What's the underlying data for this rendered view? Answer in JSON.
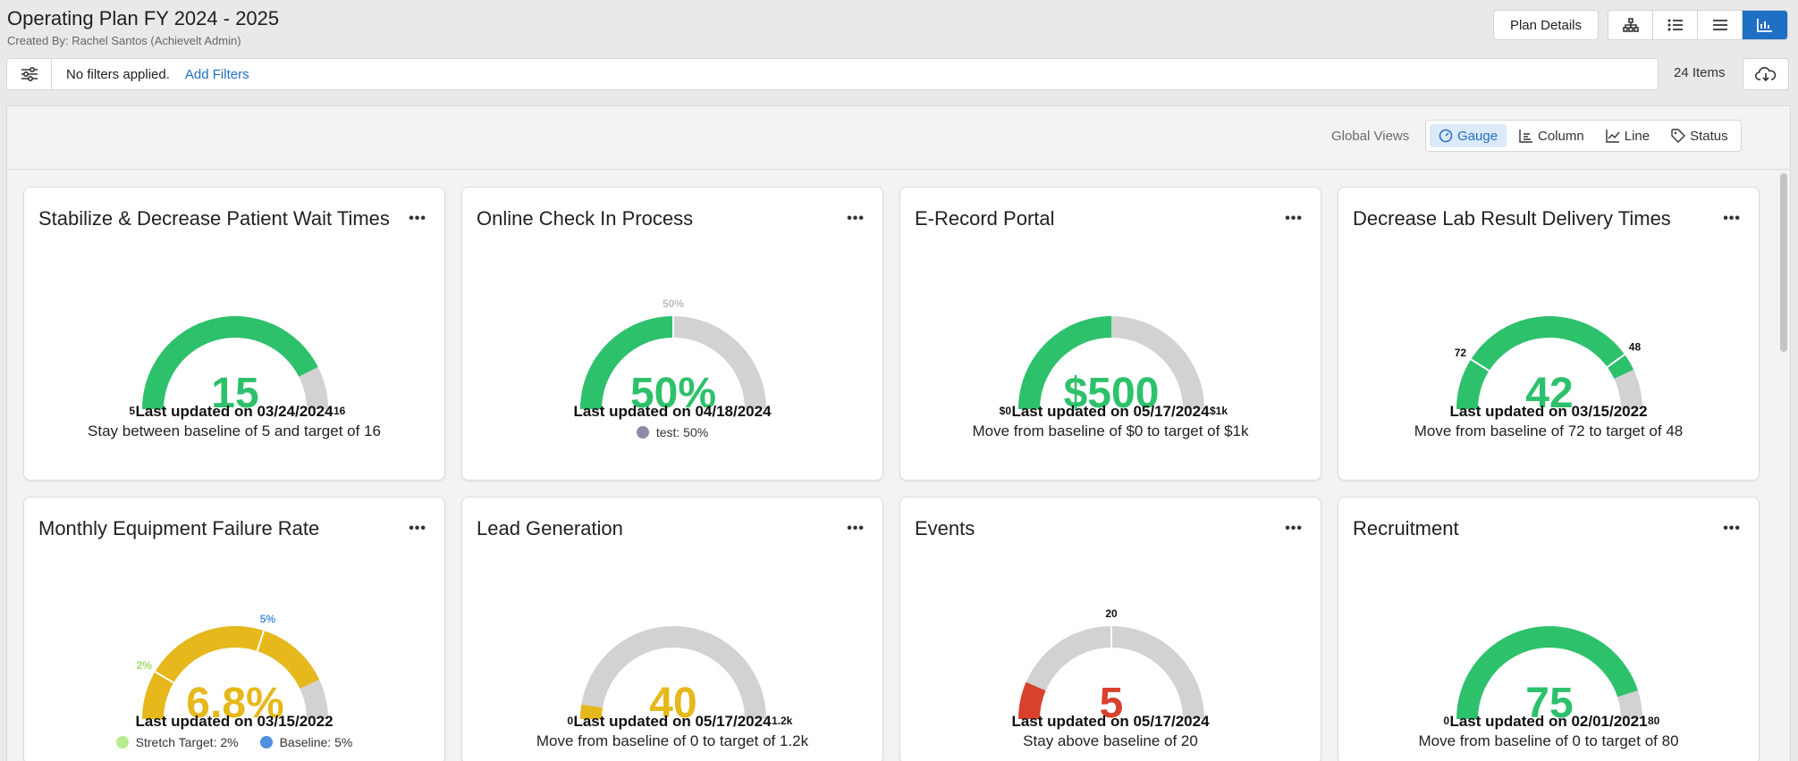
{
  "header": {
    "title": "Operating Plan FY 2024 - 2025",
    "created_by": "Created By: Rachel Santos (Achievelt Admin)",
    "plan_details_label": "Plan Details"
  },
  "filters": {
    "status_text": "No filters applied.",
    "add_label": "Add Filters",
    "items_count": "24 Items"
  },
  "global_views": {
    "label": "Global Views",
    "options": [
      "Gauge",
      "Column",
      "Line",
      "Status"
    ],
    "active": "Gauge"
  },
  "colors": {
    "green": "#2dc16c",
    "gray": "#d2d2d2",
    "yellow": "#e6b81b",
    "red": "#d9412f",
    "blue": "#1f6fc4",
    "stretch_green": "#b7ec8f",
    "baseline_blue": "#4f8fdc",
    "test_purple": "#8c8ba6"
  },
  "cards": [
    {
      "title": "Stabilize & Decrease Patient Wait Times",
      "value": "15",
      "value_color": "#2dc16c",
      "fill_fraction": 0.85,
      "fill_color": "#2dc16c",
      "left_label": "5",
      "right_label": "16",
      "updated": "Last updated on 03/24/2024",
      "description": "Stay between baseline of 5 and target of 16"
    },
    {
      "title": "Online Check In Process",
      "value": "50%",
      "value_color": "#2dc16c",
      "fill_fraction": 0.5,
      "fill_color": "#2dc16c",
      "marker_fraction": 0.5,
      "marker_label": "50%",
      "marker_label_color": "#bcbcbc",
      "updated": "Last updated on 04/18/2024",
      "legend": [
        {
          "label": "test: 50%",
          "color": "#8c8ba6"
        }
      ]
    },
    {
      "title": "E-Record Portal",
      "value": "$500",
      "value_color": "#2dc16c",
      "fill_fraction": 0.5,
      "fill_color": "#2dc16c",
      "left_label": "$0",
      "right_label": "$1k",
      "updated": "Last updated on 05/17/2024",
      "description": "Move from baseline of $0 to target of $1k"
    },
    {
      "title": "Decrease Lab Result Delivery Times",
      "value": "42",
      "value_color": "#2dc16c",
      "fill_fraction": 0.86,
      "fill_color": "#2dc16c",
      "marker_fraction": 0.8,
      "marker_label": "48",
      "marker_label_color": "#111111",
      "marker2_fraction": 0.18,
      "marker2_label": "72",
      "marker2_label_color": "#111111",
      "updated": "Last updated on 03/15/2022",
      "description": "Move from baseline of 72 to target of 48"
    },
    {
      "title": "Monthly Equipment Failure Rate",
      "value": "6.8%",
      "value_color": "#e6b81b",
      "fill_fraction": 0.86,
      "fill_color": "#e6b81b",
      "marker_fraction": 0.6,
      "marker_label": "5%",
      "marker_label_color": "#4f8fdc",
      "marker2_fraction": 0.17,
      "marker2_label": "2%",
      "marker2_label_color": "#9fdc6a",
      "updated": "Last updated on 03/15/2022",
      "legend": [
        {
          "label": "Stretch Target: 2%",
          "color": "#b7ec8f"
        },
        {
          "label": "Baseline: 5%",
          "color": "#4f8fdc"
        }
      ]
    },
    {
      "title": "Lead Generation",
      "value": "40",
      "value_color": "#e6b81b",
      "fill_fraction": 0.05,
      "fill_color": "#e6b81b",
      "left_label": "0",
      "right_label": "1.2k",
      "updated": "Last updated on 05/17/2024",
      "description": "Move from baseline of 0 to target of 1.2k"
    },
    {
      "title": "Events",
      "value": "5",
      "value_color": "#d9412f",
      "fill_fraction": 0.13,
      "fill_color": "#d9412f",
      "marker_fraction": 0.5,
      "marker_label": "20",
      "marker_label_color": "#111111",
      "updated": "Last updated on 05/17/2024",
      "description": "Stay above baseline of 20"
    },
    {
      "title": "Recruitment",
      "value": "75",
      "value_color": "#2dc16c",
      "fill_fraction": 0.9,
      "fill_color": "#2dc16c",
      "left_label": "0",
      "right_label": "80",
      "updated": "Last updated on 02/01/2021",
      "description": "Move from baseline of 0 to target of 80"
    }
  ]
}
